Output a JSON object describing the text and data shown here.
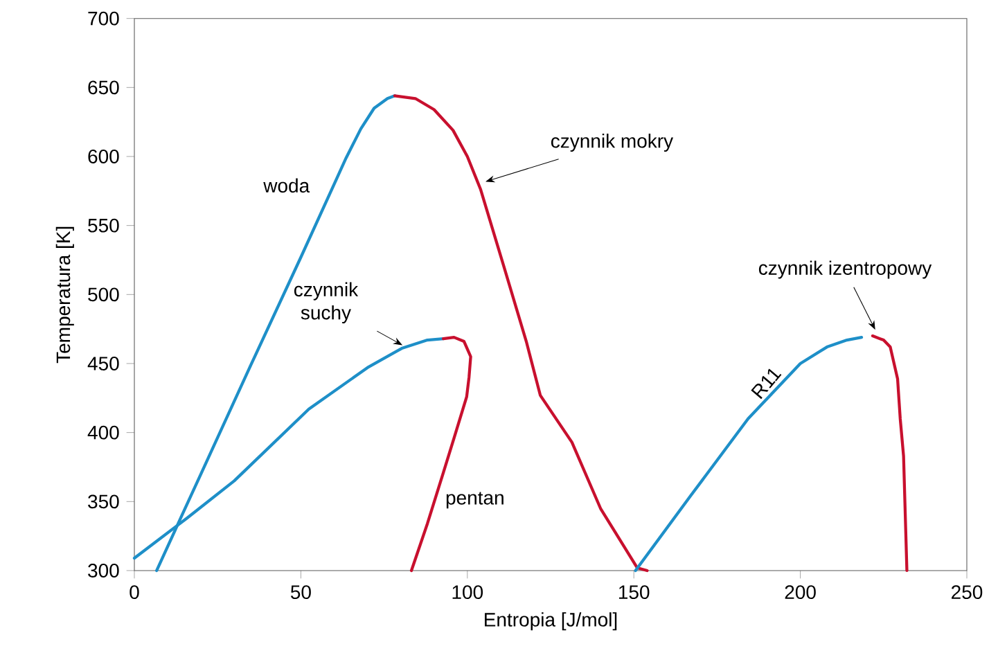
{
  "chart_data": {
    "type": "line",
    "xlabel": "Entropia [J/mol]",
    "ylabel": "Temperatura [K]",
    "xlim": [
      0,
      250
    ],
    "ylim": [
      300,
      700
    ],
    "xticks": [
      0,
      50,
      100,
      150,
      200,
      250
    ],
    "yticks": [
      300,
      350,
      400,
      450,
      500,
      550,
      600,
      650,
      700
    ],
    "series": [
      {
        "color": "#1e8fc8",
        "x": [
          6.7,
          13.9,
          20,
          35,
          50,
          63.6,
          68,
          72,
          76,
          78.2
        ],
        "values": [
          300,
          338,
          370,
          449,
          527,
          599,
          620,
          635,
          642,
          644
        ]
      },
      {
        "color": "#c8102e",
        "x": [
          78.2,
          84.4,
          90,
          95.7,
          100,
          104,
          111,
          117.7,
          121.9,
          131.4,
          140,
          151,
          154
        ],
        "values": [
          644,
          642,
          634,
          619,
          600,
          576,
          520,
          466,
          427,
          393,
          345,
          302,
          300
        ]
      },
      {
        "color": "#1e8fc8",
        "x": [
          0,
          15.8,
          30,
          52.4,
          70,
          80.3,
          88,
          92.8
        ],
        "values": [
          309,
          338,
          365,
          417,
          447,
          461,
          467,
          468
        ]
      },
      {
        "color": "#c8102e",
        "x": [
          92.8,
          96,
          99,
          101,
          100.5,
          99.8,
          96,
          92.8,
          88,
          83.2
        ],
        "values": [
          468,
          469,
          466,
          455,
          440,
          426,
          396,
          371,
          334,
          300
        ]
      },
      {
        "color": "#1e8fc8",
        "x": [
          150.5,
          167,
          184.3,
          200,
          208,
          214,
          218.4
        ],
        "values": [
          300,
          354,
          410,
          450,
          462,
          467,
          469
        ]
      },
      {
        "color": "#c8102e",
        "x": [
          221.7,
          225,
          227,
          229.2,
          230,
          231,
          232
        ],
        "values": [
          470,
          467,
          462,
          439,
          410,
          383,
          300
        ]
      }
    ],
    "annotations": [
      "woda",
      {
        "text": "czynnik mokry",
        "x": 104.4,
        "y": 581
      },
      {
        "text": "czynnik suchy",
        "x": 81.5,
        "y": 462
      },
      "pentan",
      "R11",
      {
        "text": "czynnik izentropowy",
        "x": 223,
        "y": 472
      }
    ]
  }
}
